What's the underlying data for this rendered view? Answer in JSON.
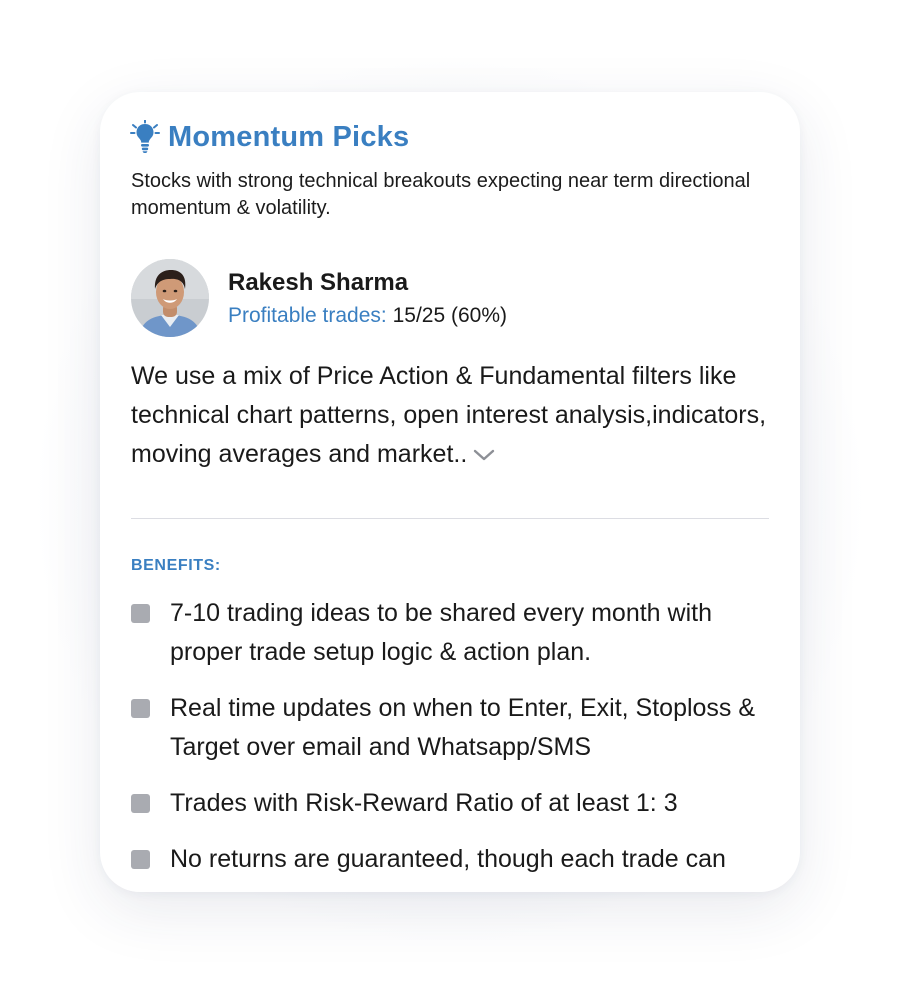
{
  "card": {
    "title": "Momentum Picks",
    "title_icon": "lightbulb-icon",
    "subtitle": "Stocks with strong technical breakouts expecting near term directional momentum & volatility.",
    "author": {
      "name": "Rakesh Sharma",
      "profitable_label": "Profitable trades:",
      "profitable_value": "15/25 (60%)"
    },
    "description": "We use a mix of Price Action & Fundamental filters like technical chart patterns, open interest analysis,indicators, moving averages and market..",
    "expand_icon": "chevron-down-icon",
    "benefits_heading": "BENEFITS:",
    "benefits": [
      "7-10 trading ideas to be shared every month with proper trade setup logic & action plan.",
      "Real time updates on when to Enter, Exit, Stoploss & Target over email and Whatsapp/SMS",
      "Trades with Risk-Reward Ratio of at least 1: 3",
      "No returns are guaranteed, though each trade can"
    ]
  },
  "colors": {
    "accent": "#3a7fc1",
    "text": "#1a1a1a",
    "bullet": "#a9abb1",
    "divider": "#dcdde3"
  }
}
